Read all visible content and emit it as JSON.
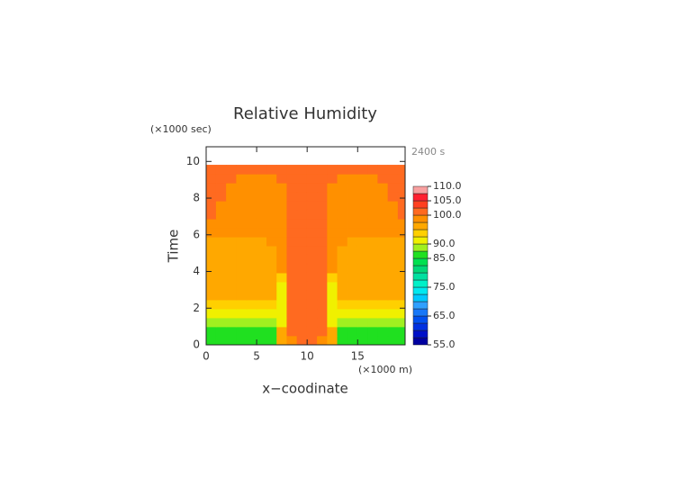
{
  "chart_data": {
    "type": "contour",
    "title": "Relative Humidity",
    "y_unit_label": "(×1000 sec)",
    "x_unit_label": "(×1000 m)",
    "time_label": "2400 s",
    "xlabel": "x−coodinate",
    "ylabel": "Time",
    "xlim": [
      0,
      19.7
    ],
    "ylim": [
      0,
      10.8
    ],
    "xticks": [
      0,
      5,
      10,
      15
    ],
    "yticks": [
      0,
      2,
      4,
      6,
      8,
      10
    ],
    "x": [
      0.5,
      1.5,
      2.5,
      3.5,
      4.5,
      5.5,
      6.5,
      7.5,
      8.5,
      9.5,
      10.5,
      11.5,
      12.5,
      13.5,
      14.5,
      15.5,
      16.5,
      17.5,
      18.5,
      19.5
    ],
    "y": [
      0.245,
      0.735,
      1.225,
      1.715,
      2.205,
      2.695,
      3.185,
      3.675,
      4.165,
      4.655,
      5.145,
      5.635,
      6.125,
      6.615,
      7.105,
      7.595,
      8.085,
      8.575,
      9.065,
      9.555
    ],
    "z": [
      [
        86,
        86,
        86,
        86,
        86,
        86,
        86,
        96,
        98.5,
        101,
        101,
        98.5,
        96,
        86,
        86,
        86,
        86,
        86,
        86,
        86
      ],
      [
        86,
        86,
        86,
        86,
        86,
        86,
        86,
        96,
        101,
        101,
        101,
        101,
        96,
        86,
        86,
        86,
        86,
        86,
        86,
        86
      ],
      [
        88,
        88,
        88,
        88,
        88,
        88,
        88,
        91,
        101,
        101,
        101,
        101,
        91,
        88,
        88,
        88,
        88,
        88,
        88,
        88
      ],
      [
        91,
        91,
        91,
        91,
        91,
        91,
        91,
        91,
        101,
        101,
        101,
        101,
        91,
        91,
        91,
        91,
        91,
        91,
        91,
        91
      ],
      [
        94,
        94,
        94,
        94,
        94,
        94,
        93,
        91,
        101,
        101,
        101,
        101,
        91,
        93,
        94,
        94,
        94,
        94,
        94,
        94
      ],
      [
        96,
        96,
        96,
        96,
        96,
        96,
        96,
        91,
        101,
        101,
        101,
        101,
        91,
        96,
        96,
        96,
        96,
        96,
        96,
        96
      ],
      [
        96,
        96,
        96,
        96,
        96,
        96,
        96,
        91,
        101,
        101,
        101,
        101,
        91,
        96,
        96,
        96,
        96,
        96,
        96,
        96
      ],
      [
        96,
        96,
        96,
        96,
        96,
        96,
        96,
        93,
        101,
        101,
        101,
        101,
        93,
        96,
        96,
        96,
        96,
        96,
        96,
        96
      ],
      [
        96,
        96,
        96,
        96,
        96,
        96,
        96,
        98.5,
        101,
        101,
        101,
        101,
        98.5,
        96,
        96,
        96,
        96,
        96,
        96,
        96
      ],
      [
        96,
        96,
        96,
        96,
        96,
        96,
        96,
        98.5,
        101,
        101,
        101,
        101,
        98.5,
        96,
        96,
        96,
        96,
        96,
        96,
        96
      ],
      [
        96,
        96,
        96,
        96,
        96,
        96,
        96,
        98.5,
        101,
        101,
        101,
        101,
        98.5,
        96,
        96,
        96,
        96,
        96,
        96,
        96
      ],
      [
        96,
        96,
        96,
        96,
        96,
        96,
        98.5,
        98.5,
        101,
        101,
        101,
        101,
        98.5,
        98.5,
        96,
        96,
        96,
        96,
        96,
        96
      ],
      [
        98.5,
        98.5,
        98.5,
        98.5,
        98.5,
        98.5,
        98.5,
        98.5,
        101,
        101,
        101,
        101,
        98.5,
        98.5,
        98.5,
        98.5,
        98.5,
        98.5,
        98.5,
        98.5
      ],
      [
        98.5,
        98.5,
        98.5,
        98.5,
        98.5,
        98.5,
        98.5,
        98.5,
        101,
        101,
        101,
        101,
        98.5,
        98.5,
        98.5,
        98.5,
        98.5,
        98.5,
        98.5,
        98.5
      ],
      [
        101,
        98.5,
        98.5,
        98.5,
        98.5,
        98.5,
        98.5,
        98.5,
        101,
        101,
        101,
        101,
        98.5,
        98.5,
        98.5,
        98.5,
        98.5,
        98.5,
        98.5,
        101
      ],
      [
        101,
        98.5,
        98.5,
        98.5,
        98.5,
        98.5,
        98.5,
        98.5,
        101,
        101,
        101,
        101,
        98.5,
        98.5,
        98.5,
        98.5,
        98.5,
        98.5,
        98.5,
        101
      ],
      [
        101,
        101,
        98.5,
        98.5,
        98.5,
        98.5,
        98.5,
        98.5,
        101,
        101,
        101,
        101,
        98.5,
        98.5,
        98.5,
        98.5,
        98.5,
        98.5,
        101,
        101
      ],
      [
        101,
        101,
        98.5,
        98.5,
        98.5,
        98.5,
        98.5,
        98.5,
        101,
        101,
        101,
        101,
        98.5,
        98.5,
        98.5,
        98.5,
        98.5,
        98.5,
        101,
        101
      ],
      [
        101,
        101,
        101,
        98.5,
        98.5,
        98.5,
        98.5,
        101,
        101,
        101,
        101,
        101,
        101,
        98.5,
        98.5,
        98.5,
        98.5,
        101,
        101,
        101
      ],
      [
        101,
        101,
        101,
        101,
        101,
        101,
        101,
        101,
        101,
        101,
        101,
        101,
        101,
        101,
        101,
        101,
        101,
        101,
        101,
        101
      ]
    ],
    "levels": [
      55,
      57.5,
      60,
      62.5,
      65,
      67.5,
      70,
      72.5,
      75,
      77.5,
      80,
      82.5,
      85,
      87.5,
      90,
      92.5,
      95,
      97.5,
      100,
      102.5,
      105,
      107.5,
      110
    ],
    "colors": [
      "#0000a0",
      "#0010c8",
      "#0030e0",
      "#0050f0",
      "#1878f8",
      "#30a0ff",
      "#00c8ff",
      "#00e8f0",
      "#00f0c8",
      "#00e0a0",
      "#00d878",
      "#00e050",
      "#20e020",
      "#a0f020",
      "#f0f000",
      "#ffd000",
      "#ffa800",
      "#ff9000",
      "#ff6a20",
      "#ff4020",
      "#ff2030",
      "#f8a0a0"
    ],
    "colorbar_ticks": [
      {
        "value": 110,
        "label": "110.0"
      },
      {
        "value": 105,
        "label": "105.0"
      },
      {
        "value": 100,
        "label": "100.0"
      },
      {
        "value": 90,
        "label": "90.0"
      },
      {
        "value": 85,
        "label": "85.0"
      },
      {
        "value": 75,
        "label": "75.0"
      },
      {
        "value": 65,
        "label": "65.0"
      },
      {
        "value": 55,
        "label": "55.0"
      }
    ]
  }
}
